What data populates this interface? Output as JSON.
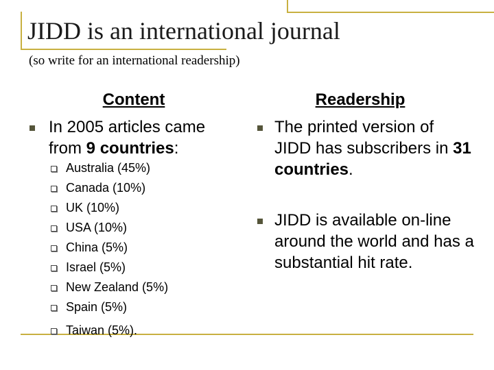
{
  "title": "JIDD is an international journal",
  "subtitle": "(so write for an international readership)",
  "content": {
    "heading": "Content",
    "bullet": {
      "text_before": "In 2005 articles came from ",
      "bold": "9 countries",
      "text_after": ":"
    },
    "countries": [
      "Australia (45%)",
      "Canada (10%)",
      "UK (10%)",
      "USA (10%)",
      "China (5%)",
      "Israel (5%)",
      "New Zealand (5%)",
      "Spain (5%)",
      "Taiwan (5%)."
    ]
  },
  "readership": {
    "heading": "Readership",
    "bullets": [
      {
        "text_before": "The printed version of JIDD has subscribers in ",
        "bold": "31 countries",
        "text_after": "."
      },
      {
        "text_before": "JIDD is available on-line around the world and has a substantial hit rate."
      }
    ]
  }
}
